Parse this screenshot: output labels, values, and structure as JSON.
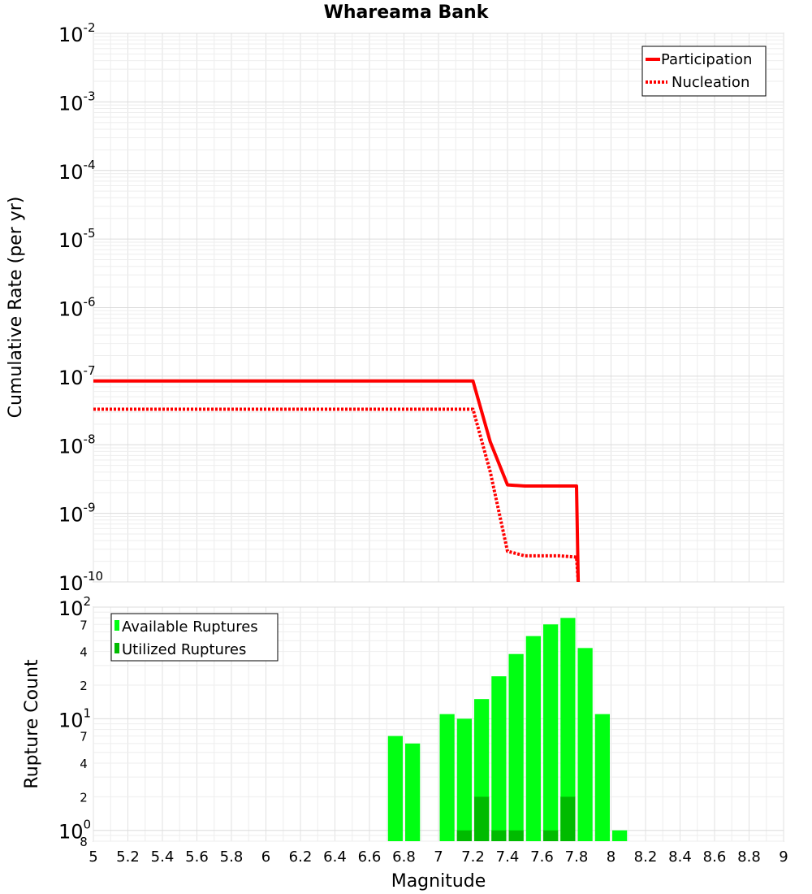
{
  "chart_data": [
    {
      "type": "line",
      "title": "Whareama Bank",
      "xlabel": "",
      "ylabel": "Cumulative Rate (per yr)",
      "xlim": [
        5,
        9
      ],
      "ylim": [
        1e-10,
        0.01
      ],
      "yscale": "log",
      "grid": true,
      "legend_position": "top-right",
      "y_tick_labels": [
        {
          "v": 0.01,
          "base": "10",
          "exp": "-2"
        },
        {
          "v": 0.001,
          "base": "10",
          "exp": "-3"
        },
        {
          "v": 0.0001,
          "base": "10",
          "exp": "-4"
        },
        {
          "v": 1e-05,
          "base": "10",
          "exp": "-5"
        },
        {
          "v": 1e-06,
          "base": "10",
          "exp": "-6"
        },
        {
          "v": 1e-07,
          "base": "10",
          "exp": "-7"
        },
        {
          "v": 1e-08,
          "base": "10",
          "exp": "-8"
        },
        {
          "v": 1e-09,
          "base": "10",
          "exp": "-9"
        },
        {
          "v": 1e-10,
          "base": "10",
          "exp": "-10"
        }
      ],
      "series": [
        {
          "name": "Participation",
          "color": "#ff0000",
          "style": "solid",
          "x": [
            5.0,
            7.2,
            7.3,
            7.4,
            7.5,
            7.6,
            7.7,
            7.8,
            7.81
          ],
          "y": [
            8.5e-08,
            8.5e-08,
            1.1e-08,
            2.6e-09,
            2.5e-09,
            2.5e-09,
            2.5e-09,
            2.5e-09,
            1e-10
          ]
        },
        {
          "name": "Nucleation",
          "color": "#ff0000",
          "style": "dotted",
          "x": [
            5.0,
            7.2,
            7.3,
            7.4,
            7.5,
            7.6,
            7.7,
            7.8,
            7.81
          ],
          "y": [
            3.3e-08,
            3.3e-08,
            4e-09,
            2.8e-10,
            2.4e-10,
            2.4e-10,
            2.4e-10,
            2.3e-10,
            1e-10
          ]
        }
      ]
    },
    {
      "type": "bar",
      "xlabel": "Magnitude",
      "ylabel": "Rupture Count",
      "xlim": [
        5,
        9
      ],
      "ylim": [
        0.8,
        100
      ],
      "yscale": "log",
      "grid": true,
      "legend_position": "top-left",
      "x_ticks": [
        "5",
        "5.2",
        "5.4",
        "5.6",
        "5.8",
        "6",
        "6.2",
        "6.4",
        "6.6",
        "6.8",
        "7",
        "7.2",
        "7.4",
        "7.6",
        "7.8",
        "8",
        "8.2",
        "8.4",
        "8.6",
        "8.8",
        "9"
      ],
      "y_tick_labels": [
        {
          "v": 100,
          "base": "10",
          "exp": "2"
        },
        {
          "v": 10,
          "base": "10",
          "exp": "1"
        },
        {
          "v": 1,
          "base": "10",
          "exp": "0"
        }
      ],
      "y_minor_labels": [
        {
          "v": 70,
          "text": "7"
        },
        {
          "v": 40,
          "text": "4"
        },
        {
          "v": 20,
          "text": "2"
        },
        {
          "v": 7,
          "text": "7"
        },
        {
          "v": 4,
          "text": "4"
        },
        {
          "v": 2,
          "text": "2"
        },
        {
          "v": 0.8,
          "text": "8"
        }
      ],
      "bar_width": 0.1,
      "series": [
        {
          "name": "Available Ruptures",
          "color": "#00ff12",
          "x": [
            6.75,
            6.85,
            7.05,
            7.15,
            7.25,
            7.35,
            7.45,
            7.55,
            7.65,
            7.75,
            7.85,
            7.95,
            8.05
          ],
          "values": [
            7,
            6,
            11,
            10,
            15,
            24,
            38,
            55,
            70,
            80,
            43,
            11,
            1
          ]
        },
        {
          "name": "Utilized Ruptures",
          "color": "#00bb00",
          "x": [
            7.15,
            7.25,
            7.35,
            7.45,
            7.65,
            7.75
          ],
          "values": [
            1,
            2,
            1,
            1,
            1,
            2
          ]
        }
      ]
    }
  ]
}
